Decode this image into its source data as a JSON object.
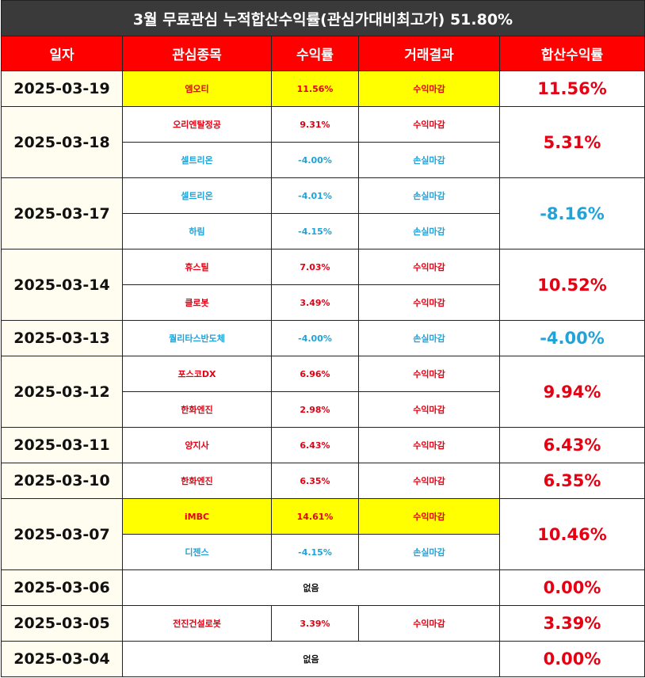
{
  "title": "3월 무료관심 누적합산수익률(관심가대비최고가) 51.80%",
  "headers": [
    "일자",
    "관심종목",
    "수익률",
    "거래결과",
    "합산수익률"
  ],
  "colors": {
    "positive": "#e60012",
    "negative": "#1fa3d8",
    "highlight": "#ffff00",
    "header_bg": "#ff0000",
    "title_bg": "#3a3a3a"
  },
  "days": [
    {
      "date": "2025-03-19",
      "total": "11.56%",
      "total_sign": "pos",
      "rows": [
        {
          "stock": "엠오티",
          "ret": "11.56%",
          "result": "수익마감",
          "sign": "pos",
          "highlight": true
        }
      ]
    },
    {
      "date": "2025-03-18",
      "total": "5.31%",
      "total_sign": "pos",
      "rows": [
        {
          "stock": "오리엔탈정공",
          "ret": "9.31%",
          "result": "수익마감",
          "sign": "pos",
          "highlight": false
        },
        {
          "stock": "셀트리온",
          "ret": "-4.00%",
          "result": "손실마감",
          "sign": "neg",
          "highlight": false
        }
      ]
    },
    {
      "date": "2025-03-17",
      "total": "-8.16%",
      "total_sign": "neg",
      "rows": [
        {
          "stock": "셀트리온",
          "ret": "-4.01%",
          "result": "손실마감",
          "sign": "neg",
          "highlight": false
        },
        {
          "stock": "하림",
          "ret": "-4.15%",
          "result": "손실마감",
          "sign": "neg",
          "highlight": false
        }
      ]
    },
    {
      "date": "2025-03-14",
      "total": "10.52%",
      "total_sign": "pos",
      "rows": [
        {
          "stock": "휴스틸",
          "ret": "7.03%",
          "result": "수익마감",
          "sign": "pos",
          "highlight": false
        },
        {
          "stock": "클로봇",
          "ret": "3.49%",
          "result": "수익마감",
          "sign": "pos",
          "highlight": false
        }
      ]
    },
    {
      "date": "2025-03-13",
      "total": "-4.00%",
      "total_sign": "neg",
      "rows": [
        {
          "stock": "퀄리타스반도체",
          "ret": "-4.00%",
          "result": "손실마감",
          "sign": "neg",
          "highlight": false
        }
      ]
    },
    {
      "date": "2025-03-12",
      "total": "9.94%",
      "total_sign": "pos",
      "rows": [
        {
          "stock": "포스코DX",
          "ret": "6.96%",
          "result": "수익마감",
          "sign": "pos",
          "highlight": false
        },
        {
          "stock": "한화엔진",
          "ret": "2.98%",
          "result": "수익마감",
          "sign": "pos",
          "highlight": false
        }
      ]
    },
    {
      "date": "2025-03-11",
      "total": "6.43%",
      "total_sign": "pos",
      "rows": [
        {
          "stock": "양지사",
          "ret": "6.43%",
          "result": "수익마감",
          "sign": "pos",
          "highlight": false
        }
      ]
    },
    {
      "date": "2025-03-10",
      "total": "6.35%",
      "total_sign": "pos",
      "rows": [
        {
          "stock": "한화엔진",
          "ret": "6.35%",
          "result": "수익마감",
          "sign": "pos",
          "highlight": false
        }
      ]
    },
    {
      "date": "2025-03-07",
      "total": "10.46%",
      "total_sign": "pos",
      "rows": [
        {
          "stock": "iMBC",
          "ret": "14.61%",
          "result": "수익마감",
          "sign": "pos",
          "highlight": true
        },
        {
          "stock": "디젠스",
          "ret": "-4.15%",
          "result": "손실마감",
          "sign": "neg",
          "highlight": false
        }
      ]
    },
    {
      "date": "2025-03-06",
      "total": "0.00%",
      "total_sign": "pos",
      "none_text": "없음",
      "rows": []
    },
    {
      "date": "2025-03-05",
      "total": "3.39%",
      "total_sign": "pos",
      "rows": [
        {
          "stock": "전진건설로봇",
          "ret": "3.39%",
          "result": "수익마감",
          "sign": "pos",
          "highlight": false
        }
      ]
    },
    {
      "date": "2025-03-04",
      "total": "0.00%",
      "total_sign": "pos",
      "none_text": "없음",
      "rows": []
    }
  ]
}
